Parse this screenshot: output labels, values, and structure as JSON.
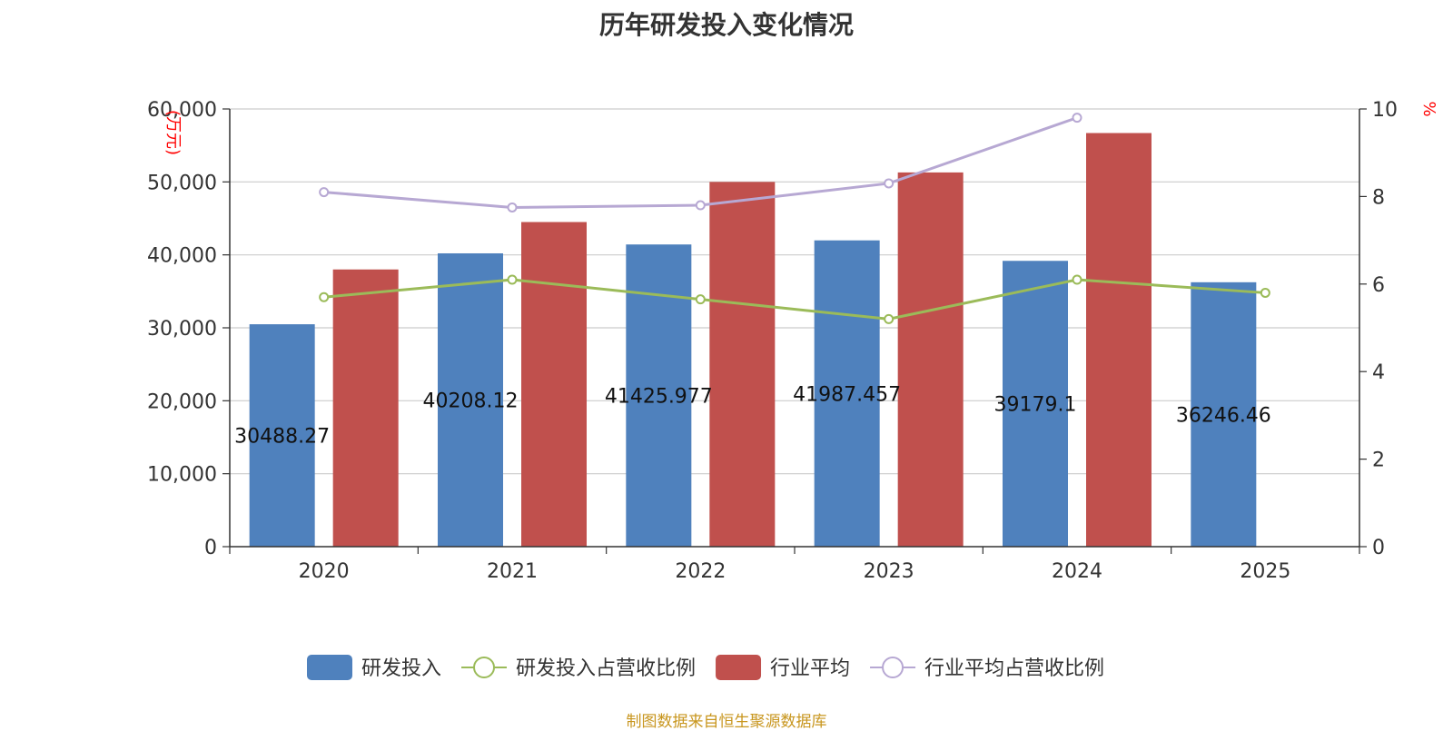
{
  "title": "历年研发投入变化情况",
  "footer": {
    "text": "制图数据来自恒生聚源数据库",
    "color": "#C8961E"
  },
  "chart_data": {
    "type": "bar",
    "title": "历年研发投入变化情况",
    "categories": [
      "2020",
      "2021",
      "2022",
      "2023",
      "2024",
      "2025"
    ],
    "y_left": {
      "unit": "(万元)",
      "min": 0,
      "max": 60000,
      "ticks": [
        "0",
        "10,000",
        "20,000",
        "30,000",
        "40,000",
        "50,000",
        "60,000"
      ]
    },
    "y_right": {
      "unit": "%",
      "min": 0,
      "max": 10,
      "ticks": [
        "0",
        "2",
        "4",
        "6",
        "8",
        "10"
      ]
    },
    "series": [
      {
        "name": "研发投入",
        "type": "bar",
        "axis": "left",
        "color": "#4F81BD",
        "values": [
          30488.27,
          40208.12,
          41425.977,
          41987.457,
          39179.1,
          36246.46
        ],
        "labels": [
          "30488.27",
          "40208.12",
          "41425.977",
          "41987.457",
          "39179.1",
          "36246.46"
        ]
      },
      {
        "name": "研发投入占营收比例",
        "type": "line",
        "axis": "right",
        "color": "#9BBB59",
        "values": [
          5.7,
          6.1,
          5.65,
          5.2,
          6.1,
          5.8
        ]
      },
      {
        "name": "行业平均",
        "type": "bar",
        "axis": "left",
        "color": "#C0504D",
        "values": [
          38000,
          44500,
          50000,
          51300,
          56700,
          null
        ]
      },
      {
        "name": "行业平均占营收比例",
        "type": "line",
        "axis": "right",
        "color": "#B7A8D3",
        "values": [
          8.1,
          7.75,
          7.8,
          8.3,
          9.8,
          null
        ]
      }
    ],
    "axis_label_color": "#FF0000",
    "grid": true,
    "legend_position": "bottom"
  }
}
